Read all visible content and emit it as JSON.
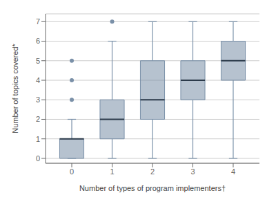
{
  "chart_data": {
    "type": "box",
    "xlabel": "Number of types of program implementers†",
    "ylabel": "Number of topics covered*",
    "x": [
      0,
      1,
      2,
      3,
      4
    ],
    "q1": [
      0,
      1,
      2,
      3,
      4
    ],
    "median": [
      1,
      2,
      3,
      4,
      5
    ],
    "q3": [
      1,
      3,
      5,
      5,
      6
    ],
    "whislo": [
      0,
      0,
      0,
      0,
      0
    ],
    "whishi": [
      2,
      6,
      7,
      7,
      7
    ],
    "fliers": [
      [
        3,
        4,
        5
      ],
      [
        7
      ],
      [],
      [],
      []
    ],
    "xlim": [
      -0.65,
      4.65
    ],
    "ylim": [
      -0.25,
      7.4
    ],
    "xticks": [
      0,
      1,
      2,
      3,
      4
    ],
    "yticks": [
      0,
      1,
      2,
      3,
      4,
      5,
      6,
      7
    ],
    "grid": "y",
    "color": "#7a90a8"
  }
}
